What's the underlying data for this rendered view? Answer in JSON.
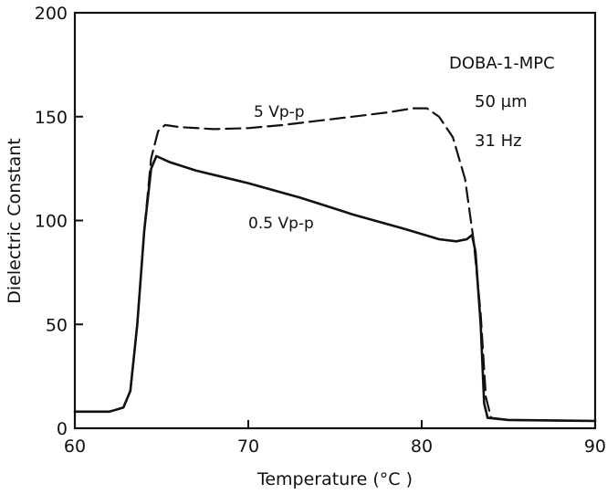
{
  "chart_data": {
    "type": "line",
    "title": "",
    "xlabel": "Temperature (°C )",
    "ylabel": "Dielectric Constant",
    "xlim": [
      60,
      90
    ],
    "ylim": [
      0,
      200
    ],
    "x_ticks": [
      60,
      70,
      80,
      90
    ],
    "y_ticks": [
      0,
      50,
      100,
      150,
      200
    ],
    "grid": false,
    "annotations": [
      "DOBA-1-MPC",
      "50 µm",
      "31 Hz"
    ],
    "series": [
      {
        "name": "5 Vp-p",
        "style": "dashed",
        "color": "#111111",
        "points": [
          [
            60.0,
            8
          ],
          [
            62.0,
            8
          ],
          [
            62.8,
            10
          ],
          [
            63.2,
            18
          ],
          [
            63.6,
            50
          ],
          [
            64.0,
            95
          ],
          [
            64.4,
            130
          ],
          [
            64.8,
            143
          ],
          [
            65.2,
            146
          ],
          [
            66.0,
            145
          ],
          [
            68.0,
            144
          ],
          [
            70.0,
            144.5
          ],
          [
            72.0,
            146
          ],
          [
            74.0,
            148
          ],
          [
            76.0,
            150
          ],
          [
            78.0,
            152
          ],
          [
            79.5,
            154
          ],
          [
            80.3,
            154
          ],
          [
            81.0,
            150
          ],
          [
            81.8,
            140
          ],
          [
            82.5,
            120
          ],
          [
            83.0,
            90
          ],
          [
            83.4,
            55
          ],
          [
            83.7,
            15
          ],
          [
            84.0,
            5
          ],
          [
            85.0,
            4
          ],
          [
            90.0,
            3.5
          ]
        ]
      },
      {
        "name": "0.5 Vp-p",
        "style": "solid",
        "color": "#111111",
        "points": [
          [
            60.0,
            8
          ],
          [
            62.0,
            8
          ],
          [
            62.8,
            10
          ],
          [
            63.2,
            18
          ],
          [
            63.6,
            50
          ],
          [
            64.0,
            95
          ],
          [
            64.4,
            125
          ],
          [
            64.7,
            131
          ],
          [
            65.5,
            128
          ],
          [
            67.0,
            124
          ],
          [
            70.0,
            118
          ],
          [
            73.0,
            111
          ],
          [
            76.0,
            103
          ],
          [
            79.0,
            96
          ],
          [
            81.0,
            91
          ],
          [
            82.0,
            90
          ],
          [
            82.6,
            91
          ],
          [
            82.9,
            93
          ],
          [
            83.1,
            85
          ],
          [
            83.4,
            50
          ],
          [
            83.6,
            12
          ],
          [
            83.8,
            5
          ],
          [
            85.0,
            4
          ],
          [
            90.0,
            3.5
          ]
        ]
      }
    ]
  }
}
